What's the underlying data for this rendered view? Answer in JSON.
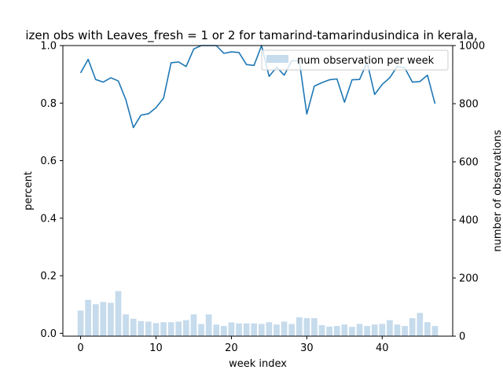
{
  "chart_data": {
    "type": "bar+line",
    "title": "izen obs with Leaves_fresh = 1 or 2 for tamarind-tamarindusindica in kerala,",
    "xlabel": "week index",
    "ylabel": "percent",
    "y2label": "number of observations",
    "xlim": [
      -2.35,
      49.35
    ],
    "ylim": [
      -0.01,
      1.0
    ],
    "y2lim": [
      0,
      1000
    ],
    "xticks": [
      0,
      10,
      20,
      30,
      40
    ],
    "yticks": [
      0.0,
      0.2,
      0.4,
      0.6,
      0.8,
      1.0
    ],
    "y2ticks": [
      0,
      200,
      400,
      600,
      800,
      1000
    ],
    "bar_color": "#c6dbec",
    "line_color": "#1f77b4",
    "legend_position": "top-right",
    "weeks": [
      0,
      1,
      2,
      3,
      4,
      5,
      6,
      7,
      8,
      9,
      10,
      11,
      12,
      13,
      14,
      15,
      16,
      17,
      18,
      19,
      20,
      21,
      22,
      23,
      24,
      25,
      26,
      27,
      28,
      29,
      30,
      31,
      32,
      33,
      34,
      35,
      36,
      37,
      38,
      39,
      40,
      41,
      42,
      43,
      44,
      45,
      46,
      47
    ],
    "series": [
      {
        "name": "num observation per week",
        "axis": "right",
        "kind": "bar",
        "values": [
          88,
          125,
          110,
          118,
          115,
          155,
          75,
          60,
          52,
          50,
          45,
          48,
          48,
          50,
          55,
          75,
          42,
          75,
          40,
          35,
          47,
          44,
          44,
          44,
          42,
          48,
          40,
          50,
          42,
          65,
          62,
          62,
          38,
          33,
          35,
          40,
          32,
          42,
          35,
          40,
          42,
          55,
          40,
          35,
          62,
          80,
          48,
          35
        ]
      },
      {
        "kind": "line",
        "axis": "left",
        "values": [
          0.905,
          0.952,
          0.882,
          0.873,
          0.888,
          0.877,
          0.812,
          0.715,
          0.758,
          0.763,
          0.784,
          0.817,
          0.94,
          0.943,
          0.927,
          0.988,
          1.0,
          1.0,
          1.0,
          0.973,
          0.978,
          0.976,
          0.934,
          0.931,
          1.0,
          0.893,
          0.925,
          0.897,
          0.947,
          0.947,
          0.762,
          0.859,
          0.871,
          0.881,
          0.884,
          0.803,
          0.881,
          0.882,
          0.942,
          0.83,
          0.865,
          0.888,
          0.928,
          0.922,
          0.873,
          0.875,
          0.897,
          0.798
        ]
      }
    ]
  }
}
